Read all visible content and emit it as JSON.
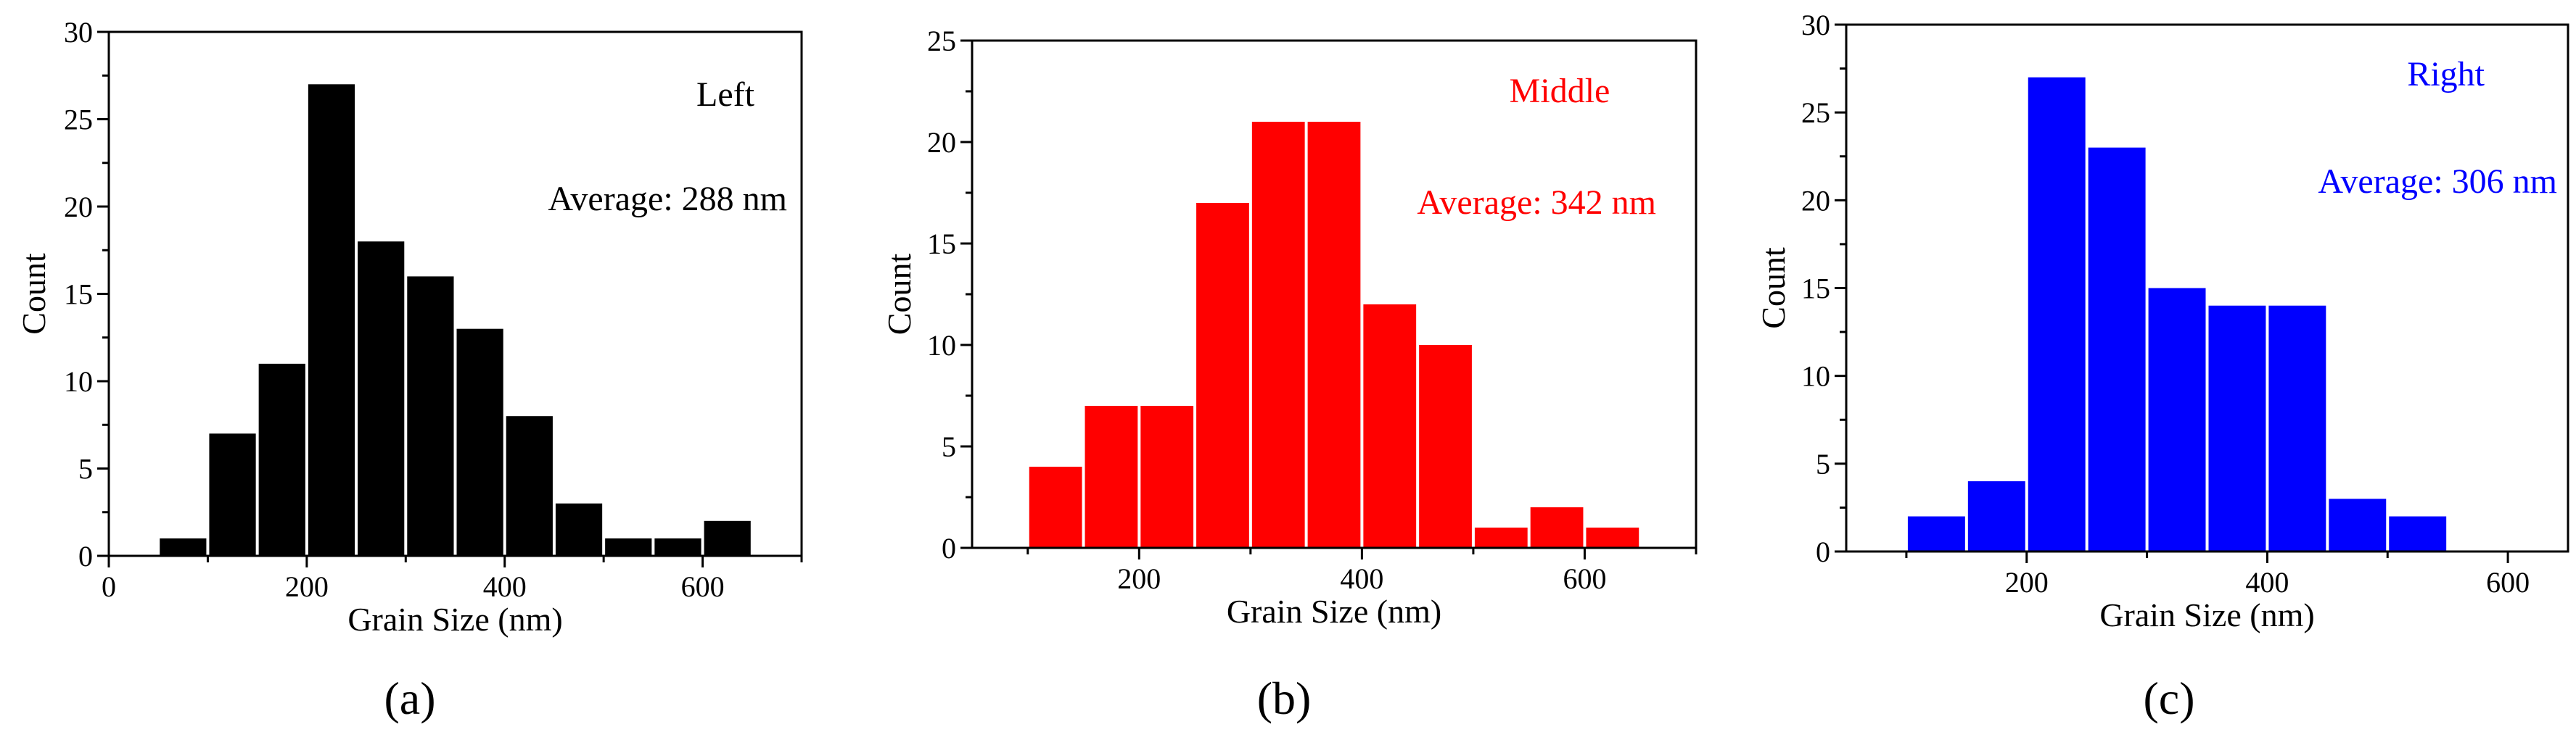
{
  "chart_data": [
    {
      "type": "bar",
      "panel_label": "(a)",
      "title": "Left",
      "average_label": "Average: 288 nm",
      "color": "#000000",
      "xlabel": "Grain Size (nm)",
      "ylabel": "Count",
      "xlim": [
        0,
        700
      ],
      "ylim": [
        0,
        30
      ],
      "xticks": [
        0,
        200,
        400,
        600
      ],
      "yticks": [
        0,
        5,
        10,
        15,
        20,
        25,
        30
      ],
      "bin_width": 50,
      "bins": [
        {
          "start": 50,
          "end": 100,
          "count": 1
        },
        {
          "start": 100,
          "end": 150,
          "count": 7
        },
        {
          "start": 150,
          "end": 200,
          "count": 11
        },
        {
          "start": 200,
          "end": 250,
          "count": 27
        },
        {
          "start": 250,
          "end": 300,
          "count": 18
        },
        {
          "start": 300,
          "end": 350,
          "count": 16
        },
        {
          "start": 350,
          "end": 400,
          "count": 13
        },
        {
          "start": 400,
          "end": 450,
          "count": 8
        },
        {
          "start": 450,
          "end": 500,
          "count": 3
        },
        {
          "start": 500,
          "end": 550,
          "count": 1
        },
        {
          "start": 550,
          "end": 600,
          "count": 1
        },
        {
          "start": 600,
          "end": 650,
          "count": 2
        }
      ]
    },
    {
      "type": "bar",
      "panel_label": "(b)",
      "title": "Middle",
      "average_label": "Average: 342 nm",
      "color": "#ff0000",
      "xlabel": "Grain Size (nm)",
      "ylabel": "Count",
      "xlim": [
        50,
        700
      ],
      "ylim": [
        0,
        25
      ],
      "xticks": [
        200,
        400,
        600
      ],
      "yticks": [
        0,
        5,
        10,
        15,
        20,
        25
      ],
      "bin_width": 50,
      "bins": [
        {
          "start": 100,
          "end": 150,
          "count": 4
        },
        {
          "start": 150,
          "end": 200,
          "count": 7
        },
        {
          "start": 200,
          "end": 250,
          "count": 7
        },
        {
          "start": 250,
          "end": 300,
          "count": 17
        },
        {
          "start": 300,
          "end": 350,
          "count": 21
        },
        {
          "start": 350,
          "end": 400,
          "count": 21
        },
        {
          "start": 400,
          "end": 450,
          "count": 12
        },
        {
          "start": 450,
          "end": 500,
          "count": 10
        },
        {
          "start": 500,
          "end": 550,
          "count": 1
        },
        {
          "start": 550,
          "end": 600,
          "count": 2
        },
        {
          "start": 600,
          "end": 650,
          "count": 1
        }
      ]
    },
    {
      "type": "bar",
      "panel_label": "(c)",
      "title": "Right",
      "average_label": "Average: 306 nm",
      "color": "#0000ff",
      "xlabel": "Grain Size (nm)",
      "ylabel": "Count",
      "xlim": [
        50,
        650
      ],
      "ylim": [
        0,
        30
      ],
      "xticks": [
        200,
        400,
        600
      ],
      "yticks": [
        0,
        5,
        10,
        15,
        20,
        25,
        30
      ],
      "bin_width": 50,
      "bins": [
        {
          "start": 100,
          "end": 150,
          "count": 2
        },
        {
          "start": 150,
          "end": 200,
          "count": 4
        },
        {
          "start": 200,
          "end": 250,
          "count": 27
        },
        {
          "start": 250,
          "end": 300,
          "count": 23
        },
        {
          "start": 300,
          "end": 350,
          "count": 15
        },
        {
          "start": 350,
          "end": 400,
          "count": 14
        },
        {
          "start": 400,
          "end": 450,
          "count": 14
        },
        {
          "start": 450,
          "end": 500,
          "count": 3
        },
        {
          "start": 500,
          "end": 550,
          "count": 2
        }
      ]
    }
  ]
}
